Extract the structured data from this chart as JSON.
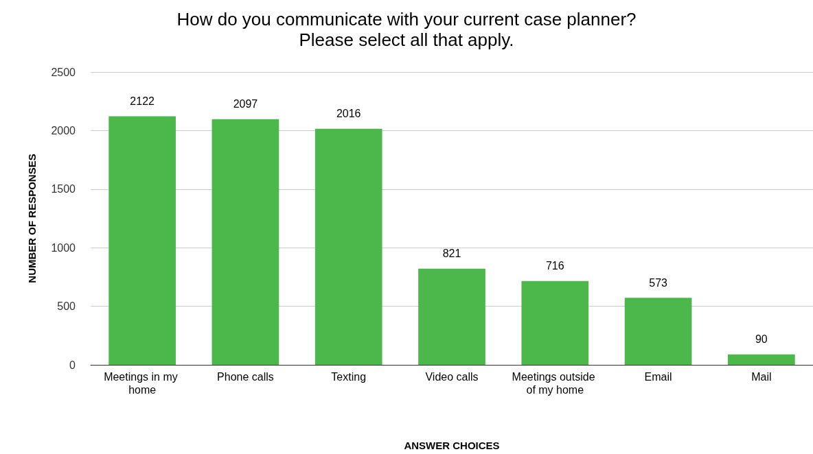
{
  "chart_data": {
    "type": "bar",
    "title": "How do you communicate with your current case planner?\nPlease select all that apply.",
    "xlabel": "ANSWER CHOICES",
    "ylabel": "NUMBER OF RESPONSES",
    "categories": [
      "Meetings in my home",
      "Phone calls",
      "Texting",
      "Video calls",
      "Meetings outside of my home",
      "Email",
      "Mail"
    ],
    "values": [
      2122,
      2097,
      2016,
      821,
      716,
      573,
      90
    ],
    "color": "#4cb84c",
    "ylim": [
      0,
      2500
    ],
    "yticks": [
      0,
      500,
      1000,
      1500,
      2000,
      2500
    ],
    "grid": "y",
    "data_labels": true
  }
}
